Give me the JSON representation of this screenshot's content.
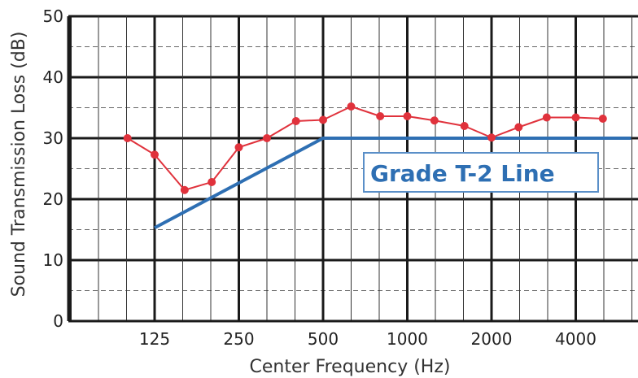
{
  "chart_data": {
    "type": "line",
    "xlabel": "Center Frequency (Hz)",
    "ylabel": "Sound Transmission Loss (dB)",
    "ylim": [
      0,
      50
    ],
    "y_ticks": [
      0,
      10,
      20,
      30,
      40,
      50
    ],
    "x_scale": "log (1/3-octave bands)",
    "x_ticks": [
      "125",
      "250",
      "500",
      "1000",
      "2000",
      "4000"
    ],
    "grid": true,
    "series": [
      {
        "color": "#e0323c",
        "x": [
          100,
          125,
          160,
          200,
          250,
          315,
          400,
          500,
          630,
          800,
          1000,
          1250,
          1600,
          2000,
          2500,
          3150,
          4000,
          5000
        ],
        "values": [
          30,
          27.3,
          21.5,
          22.8,
          28.5,
          30,
          32.8,
          33,
          35.2,
          33.6,
          33.6,
          32.9,
          32,
          30.1,
          31.8,
          33.4,
          33.4,
          33.2
        ]
      },
      {
        "color": "#2e6fb3",
        "x": [
          125,
          500,
          6300
        ],
        "values": [
          15.3,
          30,
          30
        ]
      }
    ],
    "annotations": [
      {
        "text": "Grade T-2 Line",
        "color": "#2e6fb3"
      }
    ]
  }
}
